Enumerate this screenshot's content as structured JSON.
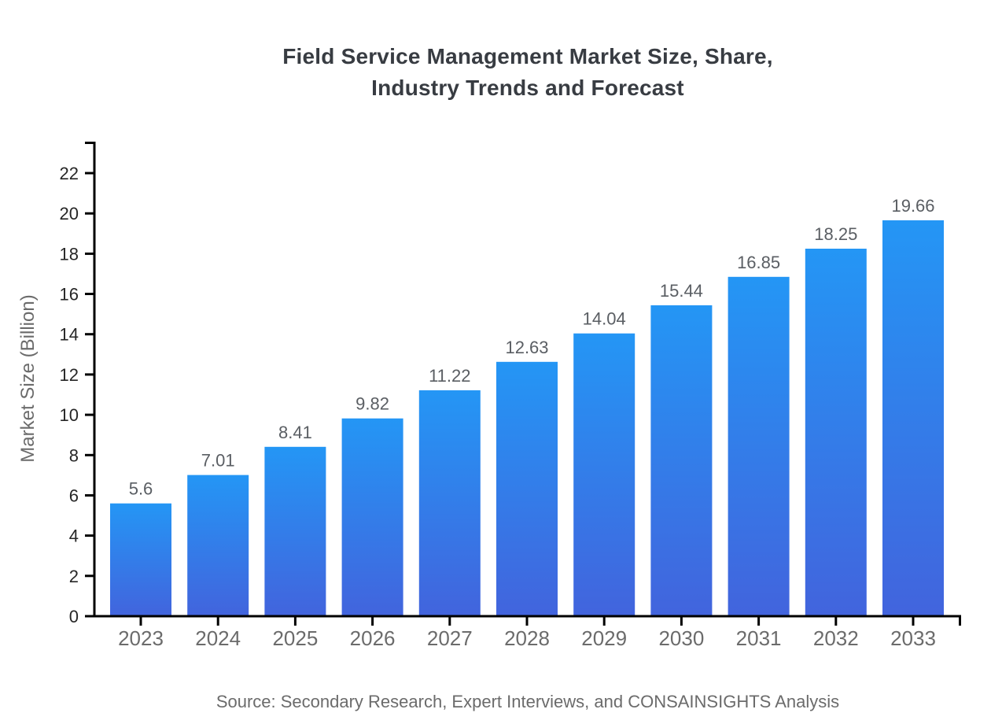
{
  "title": {
    "line1": "Field Service Management Market Size, Share,",
    "line2": "Industry Trends and Forecast"
  },
  "source": {
    "text": "Source: Secondary Research, Expert Interviews, and CONSAINSIGHTS Analysis"
  },
  "colors": {
    "bar_gradient_top": "#2496f5",
    "bar_gradient_bottom": "#4264dd",
    "axis": "#000000",
    "title_text": "#383c42",
    "ytick_text": "#262626",
    "muted_text": "#6b6b6b",
    "value_text": "#5a5e63"
  },
  "chart_data": {
    "type": "bar",
    "title": "Field Service Management Market Size, Share, Industry Trends and Forecast",
    "xlabel": "",
    "ylabel": "Market Size (Billion)",
    "categories": [
      "2023",
      "2024",
      "2025",
      "2026",
      "2027",
      "2028",
      "2029",
      "2030",
      "2031",
      "2032",
      "2033"
    ],
    "values": [
      5.6,
      7.01,
      8.41,
      9.82,
      11.22,
      12.63,
      14.04,
      15.44,
      16.85,
      18.25,
      19.66
    ],
    "value_labels": [
      "5.6",
      "7.01",
      "8.41",
      "9.82",
      "11.22",
      "12.63",
      "14.04",
      "15.44",
      "16.85",
      "18.25",
      "19.66"
    ],
    "yticks": [
      0,
      2,
      4,
      6,
      8,
      10,
      12,
      14,
      16,
      18,
      20,
      22
    ],
    "ylim": [
      0,
      23.5
    ],
    "grid": false,
    "legend": false,
    "bar_gradient": [
      "#2496f5",
      "#4264dd"
    ],
    "source": "Source: Secondary Research, Expert Interviews, and CONSAINSIGHTS Analysis"
  }
}
